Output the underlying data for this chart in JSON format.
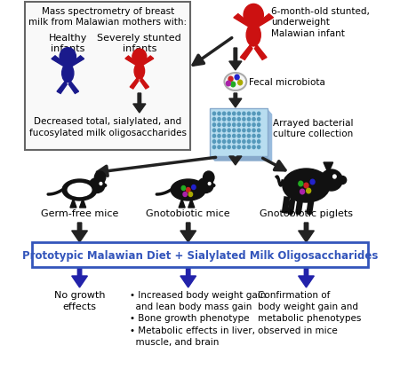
{
  "bg_color": "#ffffff",
  "blue_color": "#1a1a8c",
  "red_color": "#cc1111",
  "purple_color": "#2222aa",
  "dark_color": "#111111",
  "box_rect_color": "#3355bb",
  "plate_color": "#b8ddf0",
  "plate_dot_color": "#5599bb",
  "box_text": "Prototypic Malawian Diet + Sialylated Milk Oligosaccharides",
  "top_left_title": "Mass spectrometry of breast\nmilk from Malawian mothers with:",
  "healthy_label": "Healthy\ninfants",
  "stunted_label": "Severely stunted\ninfants",
  "decreased_text": "Decreased total, sialylated, and\nfucosylated milk oligosaccharides",
  "infant_text": "6-month-old stunted,\nunderweight\nMalawian infant",
  "fecal_text": "Fecal microbiota",
  "arrayed_text": "Arrayed bacterial\nculture collection",
  "mouse1_label": "Germ-free mice",
  "mouse2_label": "Gnotobiotic mice",
  "piglet_label": "Gnotobiotic piglets",
  "result1": "No growth\neffects",
  "result2": "• Increased body weight gain\n  and lean body mass gain\n• Bone growth phenotype\n• Metabolic effects in liver,\n  muscle, and brain",
  "result3": "Confirmation of\nbody weight gain and\nmetabolic phenotypes\nobserved in mice"
}
